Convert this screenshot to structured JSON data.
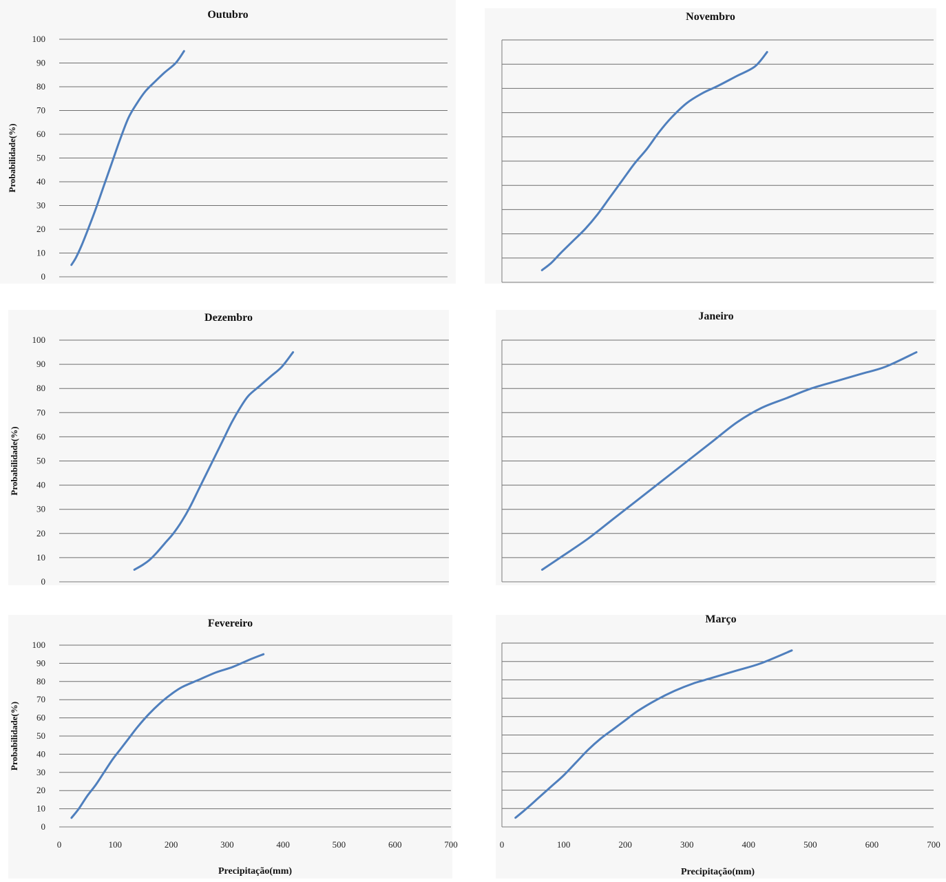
{
  "chart_data": [
    {
      "type": "line",
      "title": "Outubro",
      "ylabel": "Probabilidade(%)",
      "xlabel": "",
      "xlim": [
        0,
        700
      ],
      "ylim": [
        0,
        100
      ],
      "yticks": [
        "0",
        "10",
        "20",
        "30",
        "40",
        "50",
        "60",
        "70",
        "80",
        "90",
        "100"
      ],
      "xticks": [],
      "grid": true,
      "series": [
        {
          "color": "#4F7FBD",
          "x": [
            22,
            30,
            40,
            52,
            65,
            80,
            95,
            110,
            125,
            140,
            155,
            172,
            190,
            210,
            225
          ],
          "y": [
            5,
            8,
            13,
            20,
            28,
            38,
            48,
            58,
            67,
            73,
            78,
            82,
            86,
            90,
            95
          ]
        }
      ]
    },
    {
      "type": "line",
      "title": "Novembro",
      "ylabel": "",
      "xlabel": "",
      "xlim": [
        0,
        700
      ],
      "ylim": [
        0,
        100
      ],
      "yticks": [],
      "xticks": [],
      "grid": true,
      "series": [
        {
          "color": "#4F7FBD",
          "x": [
            65,
            80,
            95,
            115,
            135,
            155,
            175,
            195,
            215,
            235,
            255,
            275,
            300,
            325,
            350,
            380,
            410,
            430
          ],
          "y": [
            5,
            8,
            12,
            17,
            22,
            28,
            35,
            42,
            49,
            55,
            62,
            68,
            74,
            78,
            81,
            85,
            89,
            95
          ]
        }
      ]
    },
    {
      "type": "line",
      "title": "Dezembro",
      "ylabel": "Probabilidade(%)",
      "xlabel": "",
      "xlim": [
        0,
        700
      ],
      "ylim": [
        0,
        100
      ],
      "yticks": [
        "0",
        "10",
        "20",
        "30",
        "40",
        "50",
        "60",
        "70",
        "80",
        "90",
        "100"
      ],
      "xticks": [],
      "grid": true,
      "series": [
        {
          "color": "#4F7FBD",
          "x": [
            135,
            150,
            162,
            175,
            190,
            205,
            220,
            235,
            250,
            265,
            280,
            295,
            310,
            325,
            340,
            360,
            380,
            400,
            420
          ],
          "y": [
            5,
            7,
            9,
            12,
            16,
            20,
            25,
            31,
            38,
            45,
            52,
            59,
            66,
            72,
            77,
            81,
            85,
            89,
            95
          ]
        }
      ]
    },
    {
      "type": "line",
      "title": "Janeiro",
      "ylabel": "",
      "xlabel": "",
      "xlim": [
        0,
        700
      ],
      "ylim": [
        0,
        100
      ],
      "yticks": [],
      "xticks": [],
      "grid": true,
      "series": [
        {
          "color": "#4F7FBD",
          "x": [
            65,
            100,
            140,
            180,
            220,
            260,
            300,
            340,
            380,
            420,
            460,
            500,
            540,
            580,
            620,
            670
          ],
          "y": [
            5,
            11,
            18,
            26,
            34,
            42,
            50,
            58,
            66,
            72,
            76,
            80,
            83,
            86,
            89,
            95
          ]
        }
      ]
    },
    {
      "type": "line",
      "title": "Fevereiro",
      "ylabel": "Probabilidade(%)",
      "xlabel": "Precipitação(mm)",
      "xlim": [
        0,
        700
      ],
      "ylim": [
        0,
        100
      ],
      "yticks": [
        "0",
        "10",
        "20",
        "30",
        "40",
        "50",
        "60",
        "70",
        "80",
        "90",
        "100"
      ],
      "xticks": [
        "0",
        "100",
        "200",
        "300",
        "400",
        "500",
        "600",
        "700"
      ],
      "grid": true,
      "series": [
        {
          "color": "#4F7FBD",
          "x": [
            22,
            35,
            50,
            65,
            80,
            95,
            110,
            125,
            140,
            160,
            180,
            200,
            220,
            250,
            280,
            310,
            340,
            365
          ],
          "y": [
            5,
            10,
            17,
            23,
            30,
            37,
            43,
            49,
            55,
            62,
            68,
            73,
            77,
            81,
            85,
            88,
            92,
            95
          ]
        }
      ]
    },
    {
      "type": "line",
      "title": "Março",
      "ylabel": "",
      "xlabel": "Precipitação(mm)",
      "xlim": [
        0,
        700
      ],
      "ylim": [
        0,
        100
      ],
      "yticks": [],
      "xticks": [
        "0",
        "100",
        "200",
        "300",
        "400",
        "500",
        "600",
        "700"
      ],
      "grid": true,
      "series": [
        {
          "color": "#4F7FBD",
          "x": [
            22,
            40,
            60,
            80,
            100,
            120,
            140,
            160,
            180,
            200,
            220,
            250,
            280,
            310,
            340,
            380,
            420,
            470
          ],
          "y": [
            5,
            10,
            16,
            22,
            28,
            35,
            42,
            48,
            53,
            58,
            63,
            69,
            74,
            78,
            81,
            85,
            89,
            96
          ]
        }
      ]
    }
  ]
}
